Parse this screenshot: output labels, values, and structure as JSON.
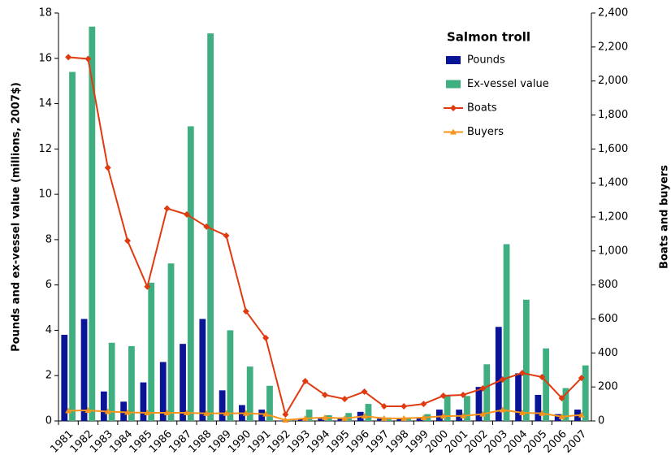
{
  "chart_data": {
    "type": "bar",
    "legend_title": "Salmon troll",
    "y_label": "Pounds and ex-vessel value (millions, 2007$)",
    "y2_label": "Boats and buyers",
    "categories": [
      "1981",
      "1982",
      "1983",
      "1984",
      "1985",
      "1986",
      "1987",
      "1988",
      "1989",
      "1990",
      "1991",
      "1992",
      "1993",
      "1994",
      "1995",
      "1996",
      "1997",
      "1998",
      "1999",
      "2000",
      "2001",
      "2002",
      "2003",
      "2004",
      "2005",
      "2006",
      "2007"
    ],
    "series": [
      {
        "name": "Pounds",
        "type": "bar",
        "color": "#0a1496",
        "values": [
          3.8,
          4.5,
          1.3,
          0.85,
          1.7,
          2.6,
          3.4,
          4.5,
          1.35,
          0.7,
          0.5,
          0.02,
          0.1,
          0.1,
          0.15,
          0.4,
          0.1,
          0.1,
          0.15,
          0.5,
          0.5,
          1.5,
          4.15,
          2.1,
          1.15,
          0.3,
          0.5
        ]
      },
      {
        "name": "Ex-vessel value",
        "type": "bar",
        "color": "#3fae80",
        "values": [
          15.4,
          17.4,
          3.45,
          3.3,
          6.1,
          6.95,
          13.0,
          17.1,
          4.0,
          2.4,
          1.55,
          0.05,
          0.5,
          0.25,
          0.35,
          0.75,
          0.15,
          0.15,
          0.3,
          1.1,
          1.1,
          2.5,
          7.8,
          5.35,
          3.2,
          1.45,
          2.45
        ]
      },
      {
        "name": "Boats",
        "type": "line",
        "axis": "y2",
        "marker": "diamond",
        "color": "#e03a10",
        "values": [
          2140,
          2130,
          1490,
          1060,
          790,
          1250,
          1215,
          1143,
          1090,
          645,
          488,
          38,
          234,
          153,
          129,
          172,
          86,
          86,
          100,
          148,
          153,
          191,
          244,
          282,
          258,
          134,
          253
        ]
      },
      {
        "name": "Buyers",
        "type": "line",
        "axis": "y2",
        "marker": "triangle",
        "color": "#f7941d",
        "values": [
          60,
          62,
          55,
          50,
          48,
          48,
          48,
          44,
          45,
          45,
          40,
          5,
          15,
          20,
          15,
          28,
          15,
          15,
          20,
          28,
          30,
          40,
          65,
          48,
          45,
          25,
          35
        ]
      }
    ],
    "ylim": [
      0,
      18
    ],
    "yticks": [
      0,
      2,
      4,
      6,
      8,
      10,
      12,
      14,
      16,
      18
    ],
    "y2lim": [
      0,
      2400
    ],
    "y2ticks": [
      0,
      200,
      400,
      600,
      800,
      {
        "value": 1000,
        "label": "1,000"
      },
      {
        "value": 1200,
        "label": "1,200"
      },
      {
        "value": 1400,
        "label": "1,400"
      },
      {
        "value": 1600,
        "label": "1,600"
      },
      {
        "value": 1800,
        "label": "1,800"
      },
      {
        "value": 2000,
        "label": "2,000"
      },
      {
        "value": 2200,
        "label": "2,200"
      },
      {
        "value": 2400,
        "label": "2,400"
      }
    ]
  }
}
